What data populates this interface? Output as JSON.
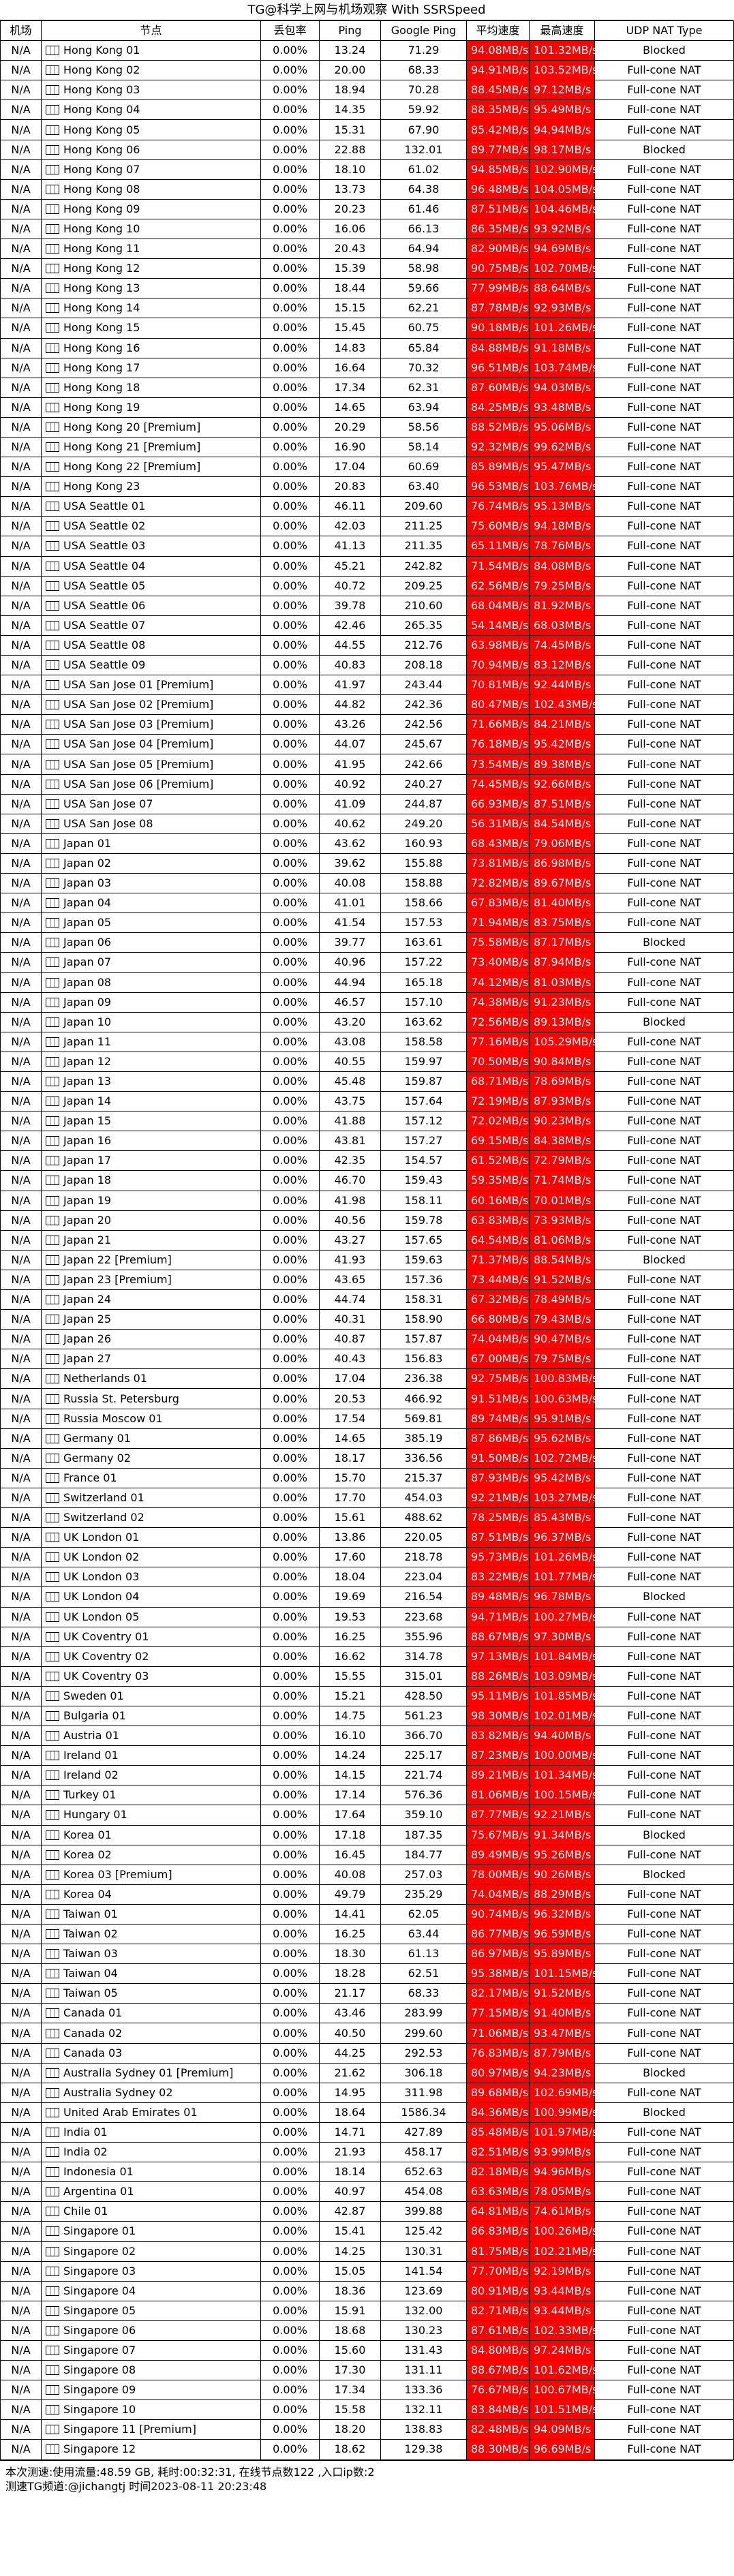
{
  "title": "TG@科学上网与机场观察 With SSRSpeed",
  "headers": [
    "机场",
    "节点",
    "丢包率",
    "Ping",
    "Google Ping",
    "平均速度",
    "最高速度",
    "UDP NAT Type"
  ],
  "rows": [
    [
      "N/A",
      "Hong Kong 01",
      "0.00%",
      "13.24",
      "71.29",
      "94.08MB/s",
      "101.32MB/s",
      "Blocked"
    ],
    [
      "N/A",
      "Hong Kong 02",
      "0.00%",
      "20.00",
      "68.33",
      "94.91MB/s",
      "103.52MB/s",
      "Full-cone NAT"
    ],
    [
      "N/A",
      "Hong Kong 03",
      "0.00%",
      "18.94",
      "70.28",
      "88.45MB/s",
      "97.12MB/s",
      "Full-cone NAT"
    ],
    [
      "N/A",
      "Hong Kong 04",
      "0.00%",
      "14.35",
      "59.92",
      "88.35MB/s",
      "95.49MB/s",
      "Full-cone NAT"
    ],
    [
      "N/A",
      "Hong Kong 05",
      "0.00%",
      "15.31",
      "67.90",
      "85.42MB/s",
      "94.94MB/s",
      "Full-cone NAT"
    ],
    [
      "N/A",
      "Hong Kong 06",
      "0.00%",
      "22.88",
      "132.01",
      "89.77MB/s",
      "98.17MB/s",
      "Blocked"
    ],
    [
      "N/A",
      "Hong Kong 07",
      "0.00%",
      "18.10",
      "61.02",
      "94.85MB/s",
      "102.90MB/s",
      "Full-cone NAT"
    ],
    [
      "N/A",
      "Hong Kong 08",
      "0.00%",
      "13.73",
      "64.38",
      "96.48MB/s",
      "104.05MB/s",
      "Full-cone NAT"
    ],
    [
      "N/A",
      "Hong Kong 09",
      "0.00%",
      "20.23",
      "61.46",
      "87.51MB/s",
      "104.46MB/s",
      "Full-cone NAT"
    ],
    [
      "N/A",
      "Hong Kong 10",
      "0.00%",
      "16.06",
      "66.13",
      "86.35MB/s",
      "93.92MB/s",
      "Full-cone NAT"
    ],
    [
      "N/A",
      "Hong Kong 11",
      "0.00%",
      "20.43",
      "64.94",
      "82.90MB/s",
      "94.69MB/s",
      "Full-cone NAT"
    ],
    [
      "N/A",
      "Hong Kong 12",
      "0.00%",
      "15.39",
      "58.98",
      "90.75MB/s",
      "102.70MB/s",
      "Full-cone NAT"
    ],
    [
      "N/A",
      "Hong Kong 13",
      "0.00%",
      "18.44",
      "59.66",
      "77.99MB/s",
      "88.64MB/s",
      "Full-cone NAT"
    ],
    [
      "N/A",
      "Hong Kong 14",
      "0.00%",
      "15.15",
      "62.21",
      "87.78MB/s",
      "92.93MB/s",
      "Full-cone NAT"
    ],
    [
      "N/A",
      "Hong Kong 15",
      "0.00%",
      "15.45",
      "60.75",
      "90.18MB/s",
      "101.26MB/s",
      "Full-cone NAT"
    ],
    [
      "N/A",
      "Hong Kong 16",
      "0.00%",
      "14.83",
      "65.84",
      "84.88MB/s",
      "91.18MB/s",
      "Full-cone NAT"
    ],
    [
      "N/A",
      "Hong Kong 17",
      "0.00%",
      "16.64",
      "70.32",
      "96.51MB/s",
      "103.74MB/s",
      "Full-cone NAT"
    ],
    [
      "N/A",
      "Hong Kong 18",
      "0.00%",
      "17.34",
      "62.31",
      "87.60MB/s",
      "94.03MB/s",
      "Full-cone NAT"
    ],
    [
      "N/A",
      "Hong Kong 19",
      "0.00%",
      "14.65",
      "63.94",
      "84.25MB/s",
      "93.48MB/s",
      "Full-cone NAT"
    ],
    [
      "N/A",
      "Hong Kong 20 [Premium]",
      "0.00%",
      "20.29",
      "58.56",
      "88.52MB/s",
      "95.06MB/s",
      "Full-cone NAT"
    ],
    [
      "N/A",
      "Hong Kong 21 [Premium]",
      "0.00%",
      "16.90",
      "58.14",
      "92.32MB/s",
      "99.62MB/s",
      "Full-cone NAT"
    ],
    [
      "N/A",
      "Hong Kong 22 [Premium]",
      "0.00%",
      "17.04",
      "60.69",
      "85.89MB/s",
      "95.47MB/s",
      "Full-cone NAT"
    ],
    [
      "N/A",
      "Hong Kong 23",
      "0.00%",
      "20.83",
      "63.40",
      "96.53MB/s",
      "103.76MB/s",
      "Full-cone NAT"
    ],
    [
      "N/A",
      "USA Seattle 01",
      "0.00%",
      "46.11",
      "209.60",
      "76.74MB/s",
      "95.13MB/s",
      "Full-cone NAT"
    ],
    [
      "N/A",
      "USA Seattle 02",
      "0.00%",
      "42.03",
      "211.25",
      "75.60MB/s",
      "94.18MB/s",
      "Full-cone NAT"
    ],
    [
      "N/A",
      "USA Seattle 03",
      "0.00%",
      "41.13",
      "211.35",
      "65.11MB/s",
      "78.76MB/s",
      "Full-cone NAT"
    ],
    [
      "N/A",
      "USA Seattle 04",
      "0.00%",
      "45.21",
      "242.82",
      "71.54MB/s",
      "84.08MB/s",
      "Full-cone NAT"
    ],
    [
      "N/A",
      "USA Seattle 05",
      "0.00%",
      "40.72",
      "209.25",
      "62.56MB/s",
      "79.25MB/s",
      "Full-cone NAT"
    ],
    [
      "N/A",
      "USA Seattle 06",
      "0.00%",
      "39.78",
      "210.60",
      "68.04MB/s",
      "81.92MB/s",
      "Full-cone NAT"
    ],
    [
      "N/A",
      "USA Seattle 07",
      "0.00%",
      "42.46",
      "265.35",
      "54.14MB/s",
      "68.03MB/s",
      "Full-cone NAT"
    ],
    [
      "N/A",
      "USA Seattle 08",
      "0.00%",
      "44.55",
      "212.76",
      "63.98MB/s",
      "74.45MB/s",
      "Full-cone NAT"
    ],
    [
      "N/A",
      "USA Seattle 09",
      "0.00%",
      "40.83",
      "208.18",
      "70.94MB/s",
      "83.12MB/s",
      "Full-cone NAT"
    ],
    [
      "N/A",
      "USA San Jose 01 [Premium]",
      "0.00%",
      "41.97",
      "243.44",
      "70.81MB/s",
      "92.44MB/s",
      "Full-cone NAT"
    ],
    [
      "N/A",
      "USA San Jose 02 [Premium]",
      "0.00%",
      "44.82",
      "242.36",
      "80.47MB/s",
      "102.43MB/s",
      "Full-cone NAT"
    ],
    [
      "N/A",
      "USA San Jose 03 [Premium]",
      "0.00%",
      "43.26",
      "242.56",
      "71.66MB/s",
      "84.21MB/s",
      "Full-cone NAT"
    ],
    [
      "N/A",
      "USA San Jose 04 [Premium]",
      "0.00%",
      "44.07",
      "245.67",
      "76.18MB/s",
      "95.42MB/s",
      "Full-cone NAT"
    ],
    [
      "N/A",
      "USA San Jose 05 [Premium]",
      "0.00%",
      "41.95",
      "242.66",
      "73.54MB/s",
      "89.38MB/s",
      "Full-cone NAT"
    ],
    [
      "N/A",
      "USA San Jose 06 [Premium]",
      "0.00%",
      "40.92",
      "240.27",
      "74.45MB/s",
      "92.66MB/s",
      "Full-cone NAT"
    ],
    [
      "N/A",
      "USA San Jose 07",
      "0.00%",
      "41.09",
      "244.87",
      "66.93MB/s",
      "87.51MB/s",
      "Full-cone NAT"
    ],
    [
      "N/A",
      "USA San Jose 08",
      "0.00%",
      "40.62",
      "249.20",
      "56.31MB/s",
      "84.54MB/s",
      "Full-cone NAT"
    ],
    [
      "N/A",
      "Japan 01",
      "0.00%",
      "43.62",
      "160.93",
      "68.43MB/s",
      "79.06MB/s",
      "Full-cone NAT"
    ],
    [
      "N/A",
      "Japan 02",
      "0.00%",
      "39.62",
      "155.88",
      "73.81MB/s",
      "86.98MB/s",
      "Full-cone NAT"
    ],
    [
      "N/A",
      "Japan 03",
      "0.00%",
      "40.08",
      "158.88",
      "72.82MB/s",
      "89.67MB/s",
      "Full-cone NAT"
    ],
    [
      "N/A",
      "Japan 04",
      "0.00%",
      "41.01",
      "158.66",
      "67.83MB/s",
      "81.40MB/s",
      "Full-cone NAT"
    ],
    [
      "N/A",
      "Japan 05",
      "0.00%",
      "41.54",
      "157.53",
      "71.94MB/s",
      "83.75MB/s",
      "Full-cone NAT"
    ],
    [
      "N/A",
      "Japan 06",
      "0.00%",
      "39.77",
      "163.61",
      "75.58MB/s",
      "87.17MB/s",
      "Blocked"
    ],
    [
      "N/A",
      "Japan 07",
      "0.00%",
      "40.96",
      "157.22",
      "73.40MB/s",
      "87.94MB/s",
      "Full-cone NAT"
    ],
    [
      "N/A",
      "Japan 08",
      "0.00%",
      "44.94",
      "165.18",
      "74.12MB/s",
      "81.03MB/s",
      "Full-cone NAT"
    ],
    [
      "N/A",
      "Japan 09",
      "0.00%",
      "46.57",
      "157.10",
      "74.38MB/s",
      "91.23MB/s",
      "Full-cone NAT"
    ],
    [
      "N/A",
      "Japan 10",
      "0.00%",
      "43.20",
      "163.62",
      "72.56MB/s",
      "89.13MB/s",
      "Blocked"
    ],
    [
      "N/A",
      "Japan 11",
      "0.00%",
      "43.08",
      "158.58",
      "77.16MB/s",
      "105.29MB/s",
      "Full-cone NAT"
    ],
    [
      "N/A",
      "Japan 12",
      "0.00%",
      "40.55",
      "159.97",
      "70.50MB/s",
      "90.84MB/s",
      "Full-cone NAT"
    ],
    [
      "N/A",
      "Japan 13",
      "0.00%",
      "45.48",
      "159.87",
      "68.71MB/s",
      "78.69MB/s",
      "Full-cone NAT"
    ],
    [
      "N/A",
      "Japan 14",
      "0.00%",
      "43.75",
      "157.64",
      "72.19MB/s",
      "87.93MB/s",
      "Full-cone NAT"
    ],
    [
      "N/A",
      "Japan 15",
      "0.00%",
      "41.88",
      "157.12",
      "72.02MB/s",
      "90.23MB/s",
      "Full-cone NAT"
    ],
    [
      "N/A",
      "Japan 16",
      "0.00%",
      "43.81",
      "157.27",
      "69.15MB/s",
      "84.38MB/s",
      "Full-cone NAT"
    ],
    [
      "N/A",
      "Japan 17",
      "0.00%",
      "42.35",
      "154.57",
      "61.52MB/s",
      "72.79MB/s",
      "Full-cone NAT"
    ],
    [
      "N/A",
      "Japan 18",
      "0.00%",
      "46.70",
      "159.43",
      "59.35MB/s",
      "71.74MB/s",
      "Full-cone NAT"
    ],
    [
      "N/A",
      "Japan 19",
      "0.00%",
      "41.98",
      "158.11",
      "60.16MB/s",
      "70.01MB/s",
      "Full-cone NAT"
    ],
    [
      "N/A",
      "Japan 20",
      "0.00%",
      "40.56",
      "159.78",
      "63.83MB/s",
      "73.93MB/s",
      "Full-cone NAT"
    ],
    [
      "N/A",
      "Japan 21",
      "0.00%",
      "43.27",
      "157.65",
      "64.54MB/s",
      "81.06MB/s",
      "Full-cone NAT"
    ],
    [
      "N/A",
      "Japan 22 [Premium]",
      "0.00%",
      "41.93",
      "159.63",
      "71.37MB/s",
      "88.54MB/s",
      "Blocked"
    ],
    [
      "N/A",
      "Japan 23 [Premium]",
      "0.00%",
      "43.65",
      "157.36",
      "73.44MB/s",
      "91.52MB/s",
      "Full-cone NAT"
    ],
    [
      "N/A",
      "Japan 24",
      "0.00%",
      "44.74",
      "158.31",
      "67.32MB/s",
      "78.49MB/s",
      "Full-cone NAT"
    ],
    [
      "N/A",
      "Japan 25",
      "0.00%",
      "40.31",
      "158.90",
      "66.80MB/s",
      "79.43MB/s",
      "Full-cone NAT"
    ],
    [
      "N/A",
      "Japan 26",
      "0.00%",
      "40.87",
      "157.87",
      "74.04MB/s",
      "90.47MB/s",
      "Full-cone NAT"
    ],
    [
      "N/A",
      "Japan 27",
      "0.00%",
      "40.43",
      "156.83",
      "67.00MB/s",
      "79.75MB/s",
      "Full-cone NAT"
    ],
    [
      "N/A",
      "Netherlands 01",
      "0.00%",
      "17.04",
      "236.38",
      "92.75MB/s",
      "100.83MB/s",
      "Full-cone NAT"
    ],
    [
      "N/A",
      "Russia St. Petersburg",
      "0.00%",
      "20.53",
      "466.92",
      "91.51MB/s",
      "100.63MB/s",
      "Full-cone NAT"
    ],
    [
      "N/A",
      "Russia Moscow 01",
      "0.00%",
      "17.54",
      "569.81",
      "89.74MB/s",
      "95.91MB/s",
      "Full-cone NAT"
    ],
    [
      "N/A",
      "Germany 01",
      "0.00%",
      "14.65",
      "385.19",
      "87.86MB/s",
      "95.62MB/s",
      "Full-cone NAT"
    ],
    [
      "N/A",
      "Germany 02",
      "0.00%",
      "18.17",
      "336.56",
      "91.50MB/s",
      "102.72MB/s",
      "Full-cone NAT"
    ],
    [
      "N/A",
      "France 01",
      "0.00%",
      "15.70",
      "215.37",
      "87.93MB/s",
      "95.42MB/s",
      "Full-cone NAT"
    ],
    [
      "N/A",
      "Switzerland 01",
      "0.00%",
      "17.70",
      "454.03",
      "92.21MB/s",
      "103.27MB/s",
      "Full-cone NAT"
    ],
    [
      "N/A",
      "Switzerland 02",
      "0.00%",
      "15.61",
      "488.62",
      "78.25MB/s",
      "85.43MB/s",
      "Full-cone NAT"
    ],
    [
      "N/A",
      "UK London 01",
      "0.00%",
      "13.86",
      "220.05",
      "87.51MB/s",
      "96.37MB/s",
      "Full-cone NAT"
    ],
    [
      "N/A",
      "UK London 02",
      "0.00%",
      "17.60",
      "218.78",
      "95.73MB/s",
      "101.26MB/s",
      "Full-cone NAT"
    ],
    [
      "N/A",
      "UK London 03",
      "0.00%",
      "18.04",
      "223.04",
      "83.22MB/s",
      "101.77MB/s",
      "Full-cone NAT"
    ],
    [
      "N/A",
      "UK London 04",
      "0.00%",
      "19.69",
      "216.54",
      "89.48MB/s",
      "96.78MB/s",
      "Blocked"
    ],
    [
      "N/A",
      "UK London 05",
      "0.00%",
      "19.53",
      "223.68",
      "94.71MB/s",
      "100.27MB/s",
      "Full-cone NAT"
    ],
    [
      "N/A",
      "UK Coventry 01",
      "0.00%",
      "16.25",
      "355.96",
      "88.67MB/s",
      "97.30MB/s",
      "Full-cone NAT"
    ],
    [
      "N/A",
      "UK Coventry 02",
      "0.00%",
      "16.62",
      "314.78",
      "97.13MB/s",
      "101.84MB/s",
      "Full-cone NAT"
    ],
    [
      "N/A",
      "UK Coventry 03",
      "0.00%",
      "15.55",
      "315.01",
      "88.26MB/s",
      "103.09MB/s",
      "Full-cone NAT"
    ],
    [
      "N/A",
      "Sweden 01",
      "0.00%",
      "15.21",
      "428.50",
      "95.11MB/s",
      "101.85MB/s",
      "Full-cone NAT"
    ],
    [
      "N/A",
      "Bulgaria 01",
      "0.00%",
      "14.75",
      "561.23",
      "98.30MB/s",
      "102.01MB/s",
      "Full-cone NAT"
    ],
    [
      "N/A",
      "Austria 01",
      "0.00%",
      "16.10",
      "366.70",
      "83.82MB/s",
      "94.40MB/s",
      "Full-cone NAT"
    ],
    [
      "N/A",
      "Ireland 01",
      "0.00%",
      "14.24",
      "225.17",
      "87.23MB/s",
      "100.00MB/s",
      "Full-cone NAT"
    ],
    [
      "N/A",
      "Ireland 02",
      "0.00%",
      "14.15",
      "221.74",
      "89.21MB/s",
      "101.34MB/s",
      "Full-cone NAT"
    ],
    [
      "N/A",
      "Turkey 01",
      "0.00%",
      "17.14",
      "576.36",
      "81.06MB/s",
      "100.15MB/s",
      "Full-cone NAT"
    ],
    [
      "N/A",
      "Hungary 01",
      "0.00%",
      "17.64",
      "359.10",
      "87.77MB/s",
      "92.21MB/s",
      "Full-cone NAT"
    ],
    [
      "N/A",
      "Korea 01",
      "0.00%",
      "17.18",
      "187.35",
      "75.67MB/s",
      "91.34MB/s",
      "Blocked"
    ],
    [
      "N/A",
      "Korea 02",
      "0.00%",
      "16.45",
      "184.77",
      "89.49MB/s",
      "95.26MB/s",
      "Full-cone NAT"
    ],
    [
      "N/A",
      "Korea 03 [Premium]",
      "0.00%",
      "40.08",
      "257.03",
      "78.00MB/s",
      "90.26MB/s",
      "Blocked"
    ],
    [
      "N/A",
      "Korea 04",
      "0.00%",
      "49.79",
      "235.29",
      "74.04MB/s",
      "88.29MB/s",
      "Full-cone NAT"
    ],
    [
      "N/A",
      "Taiwan 01",
      "0.00%",
      "14.41",
      "62.05",
      "90.74MB/s",
      "96.32MB/s",
      "Full-cone NAT"
    ],
    [
      "N/A",
      "Taiwan 02",
      "0.00%",
      "16.25",
      "63.44",
      "86.77MB/s",
      "96.59MB/s",
      "Full-cone NAT"
    ],
    [
      "N/A",
      "Taiwan 03",
      "0.00%",
      "18.30",
      "61.13",
      "86.97MB/s",
      "95.89MB/s",
      "Full-cone NAT"
    ],
    [
      "N/A",
      "Taiwan 04",
      "0.00%",
      "18.28",
      "62.51",
      "95.38MB/s",
      "101.15MB/s",
      "Full-cone NAT"
    ],
    [
      "N/A",
      "Taiwan 05",
      "0.00%",
      "21.17",
      "68.33",
      "82.17MB/s",
      "91.52MB/s",
      "Full-cone NAT"
    ],
    [
      "N/A",
      "Canada 01",
      "0.00%",
      "43.46",
      "283.99",
      "77.15MB/s",
      "91.40MB/s",
      "Full-cone NAT"
    ],
    [
      "N/A",
      "Canada 02",
      "0.00%",
      "40.50",
      "299.60",
      "71.06MB/s",
      "93.47MB/s",
      "Full-cone NAT"
    ],
    [
      "N/A",
      "Canada 03",
      "0.00%",
      "44.25",
      "292.53",
      "76.83MB/s",
      "87.79MB/s",
      "Full-cone NAT"
    ],
    [
      "N/A",
      "Australia Sydney 01 [Premium]",
      "0.00%",
      "21.62",
      "306.18",
      "80.97MB/s",
      "94.23MB/s",
      "Blocked"
    ],
    [
      "N/A",
      "Australia Sydney 02",
      "0.00%",
      "14.95",
      "311.98",
      "89.68MB/s",
      "102.69MB/s",
      "Full-cone NAT"
    ],
    [
      "N/A",
      "United Arab Emirates 01",
      "0.00%",
      "18.64",
      "1586.34",
      "84.36MB/s",
      "100.99MB/s",
      "Blocked"
    ],
    [
      "N/A",
      "India 01",
      "0.00%",
      "14.71",
      "427.89",
      "85.48MB/s",
      "101.97MB/s",
      "Full-cone NAT"
    ],
    [
      "N/A",
      "India 02",
      "0.00%",
      "21.93",
      "458.17",
      "82.51MB/s",
      "93.99MB/s",
      "Full-cone NAT"
    ],
    [
      "N/A",
      "Indonesia 01",
      "0.00%",
      "18.14",
      "652.63",
      "82.18MB/s",
      "94.96MB/s",
      "Full-cone NAT"
    ],
    [
      "N/A",
      "Argentina 01",
      "0.00%",
      "40.97",
      "454.08",
      "63.63MB/s",
      "78.05MB/s",
      "Full-cone NAT"
    ],
    [
      "N/A",
      "Chile 01",
      "0.00%",
      "42.87",
      "399.88",
      "64.81MB/s",
      "74.61MB/s",
      "Full-cone NAT"
    ],
    [
      "N/A",
      "Singapore 01",
      "0.00%",
      "15.41",
      "125.42",
      "86.83MB/s",
      "100.26MB/s",
      "Full-cone NAT"
    ],
    [
      "N/A",
      "Singapore 02",
      "0.00%",
      "14.25",
      "130.31",
      "81.75MB/s",
      "102.21MB/s",
      "Full-cone NAT"
    ],
    [
      "N/A",
      "Singapore 03",
      "0.00%",
      "15.05",
      "141.54",
      "77.70MB/s",
      "92.19MB/s",
      "Full-cone NAT"
    ],
    [
      "N/A",
      "Singapore 04",
      "0.00%",
      "18.36",
      "123.69",
      "80.91MB/s",
      "93.44MB/s",
      "Full-cone NAT"
    ],
    [
      "N/A",
      "Singapore 05",
      "0.00%",
      "15.91",
      "132.00",
      "82.71MB/s",
      "93.44MB/s",
      "Full-cone NAT"
    ],
    [
      "N/A",
      "Singapore 06",
      "0.00%",
      "18.68",
      "130.23",
      "87.61MB/s",
      "102.33MB/s",
      "Full-cone NAT"
    ],
    [
      "N/A",
      "Singapore 07",
      "0.00%",
      "15.60",
      "131.43",
      "84.80MB/s",
      "97.24MB/s",
      "Full-cone NAT"
    ],
    [
      "N/A",
      "Singapore 08",
      "0.00%",
      "17.30",
      "131.11",
      "88.67MB/s",
      "101.62MB/s",
      "Full-cone NAT"
    ],
    [
      "N/A",
      "Singapore 09",
      "0.00%",
      "17.34",
      "133.36",
      "76.67MB/s",
      "100.67MB/s",
      "Full-cone NAT"
    ],
    [
      "N/A",
      "Singapore 10",
      "0.00%",
      "15.58",
      "132.11",
      "83.84MB/s",
      "101.51MB/s",
      "Full-cone NAT"
    ],
    [
      "N/A",
      "Singapore 11 [Premium]",
      "0.00%",
      "18.20",
      "138.83",
      "82.48MB/s",
      "94.09MB/s",
      "Full-cone NAT"
    ],
    [
      "N/A",
      "Singapore 12",
      "0.00%",
      "18.62",
      "129.38",
      "88.30MB/s",
      "96.69MB/s",
      "Full-cone NAT"
    ]
  ],
  "footer": {
    "line1": "本次测速:使用流量:48.59 GB, 耗时:00:32:31, 在线节点数122 ,入口ip数:2",
    "line2": "测速TG频道:@jichangtj 时间2023-08-11 20:23:48"
  },
  "colors": {
    "speed_cell_bg": "#ff0000",
    "speed_cell_text": "#ffffff",
    "grid": "#000000"
  },
  "icons": {
    "flag": "flag-icon"
  }
}
